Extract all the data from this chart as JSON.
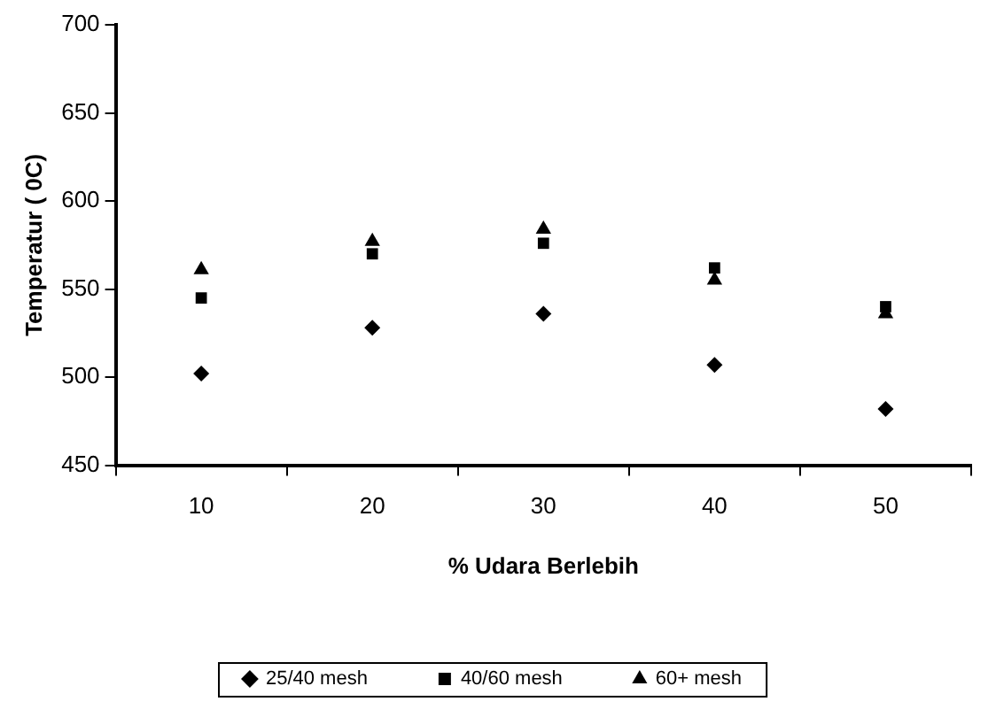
{
  "chart_data": {
    "type": "scatter",
    "xlabel": "% Udara Berlebih",
    "ylabel": "Temperatur ( 0C)",
    "categories": [
      "10",
      "20",
      "30",
      "40",
      "50"
    ],
    "series": [
      {
        "name": "25/40 mesh",
        "color": "#000000",
        "marker": "diamond",
        "values": [
          502,
          528,
          536,
          507,
          482
        ]
      },
      {
        "name": "40/60 mesh",
        "color": "#000000",
        "marker": "square",
        "values": [
          545,
          570,
          576,
          562,
          540
        ]
      },
      {
        "name": "60+ mesh",
        "color": "#000000",
        "marker": "triangle",
        "values": [
          561,
          577,
          584,
          555,
          536
        ]
      }
    ],
    "ylim": [
      450,
      700
    ],
    "yticks": [
      450,
      500,
      550,
      600,
      650,
      700
    ],
    "grid": false,
    "legend": "bottom"
  }
}
